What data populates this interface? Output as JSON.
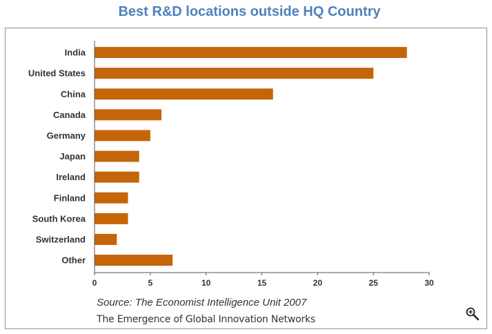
{
  "chart_data": {
    "type": "bar",
    "orientation": "horizontal",
    "title": "Best R&D locations outside HQ Country",
    "categories": [
      "India",
      "United States",
      "China",
      "Canada",
      "Germany",
      "Japan",
      "Ireland",
      "Finland",
      "South Korea",
      "Switzerland",
      "Other"
    ],
    "values": [
      28,
      25,
      16,
      6,
      5,
      4,
      4,
      3,
      3,
      2,
      7
    ],
    "xlim": [
      0,
      30
    ],
    "xticks": [
      "0",
      "5",
      "10",
      "15",
      "20",
      "25",
      "30"
    ],
    "xlabel": "",
    "ylabel": "",
    "grid": false,
    "bar_color": "#c5650a"
  },
  "footer": {
    "source": "Source: The Economist Intelligence Unit 2007",
    "subtitle": "The Emergence of Global Innovation Networks"
  },
  "icons": {
    "zoom": "zoom-in-icon"
  }
}
